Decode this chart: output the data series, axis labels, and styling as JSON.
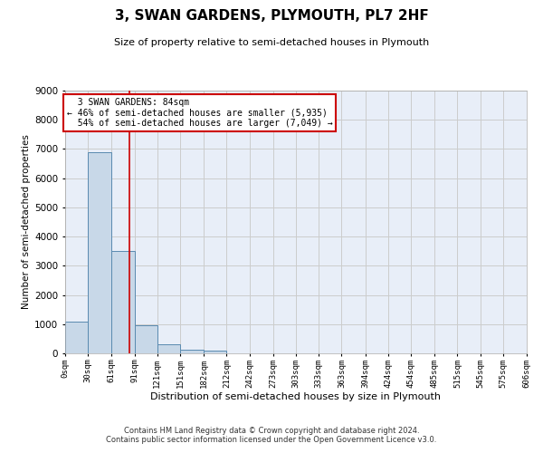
{
  "title": "3, SWAN GARDENS, PLYMOUTH, PL7 2HF",
  "subtitle": "Size of property relative to semi-detached houses in Plymouth",
  "xlabel": "Distribution of semi-detached houses by size in Plymouth",
  "ylabel": "Number of semi-detached properties",
  "footer_line1": "Contains HM Land Registry data © Crown copyright and database right 2024.",
  "footer_line2": "Contains public sector information licensed under the Open Government Licence v3.0.",
  "bar_color": "#c8d8e8",
  "bar_edge_color": "#5a8ab0",
  "grid_color": "#cccccc",
  "bg_color": "#e8eef8",
  "annotation_box_color": "#cc0000",
  "property_line_color": "#cc0000",
  "bin_labels": [
    "0sqm",
    "30sqm",
    "61sqm",
    "91sqm",
    "121sqm",
    "151sqm",
    "182sqm",
    "212sqm",
    "242sqm",
    "273sqm",
    "303sqm",
    "333sqm",
    "363sqm",
    "394sqm",
    "424sqm",
    "454sqm",
    "485sqm",
    "515sqm",
    "545sqm",
    "575sqm",
    "606sqm"
  ],
  "bin_edges": [
    0,
    30,
    61,
    91,
    121,
    151,
    182,
    212,
    242,
    273,
    303,
    333,
    363,
    394,
    424,
    454,
    485,
    515,
    545,
    575,
    606
  ],
  "bar_heights": [
    1100,
    6900,
    3500,
    950,
    300,
    120,
    80,
    0,
    0,
    0,
    0,
    0,
    0,
    0,
    0,
    0,
    0,
    0,
    0,
    0
  ],
  "ylim": [
    0,
    9000
  ],
  "yticks": [
    0,
    1000,
    2000,
    3000,
    4000,
    5000,
    6000,
    7000,
    8000,
    9000
  ],
  "property_size": 84,
  "pct_smaller": 46,
  "pct_larger": 54,
  "count_smaller": 5935,
  "count_larger": 7049
}
